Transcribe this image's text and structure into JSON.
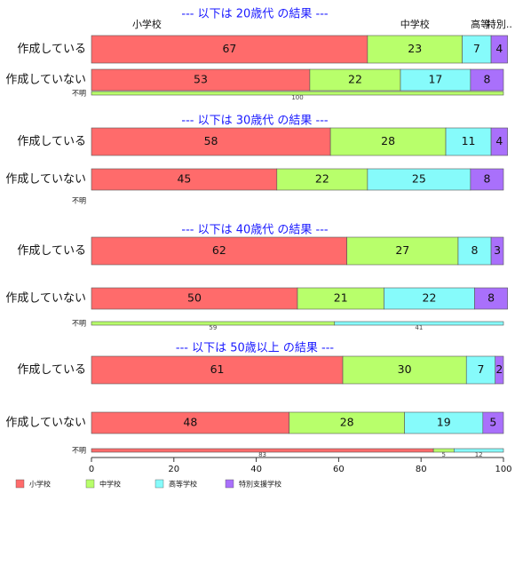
{
  "chart_data": {
    "type": "bar",
    "orientation": "horizontal",
    "stacked": true,
    "categories": [
      "小学校",
      "中学校",
      "高等学校",
      "特別支援学校"
    ],
    "colors": [
      "#ff6b6b",
      "#b8ff6b",
      "#86fbfb",
      "#a970fb"
    ],
    "category_labels_top": [
      "小学校",
      "中学校",
      "高等.",
      "特別.."
    ],
    "xlim": [
      0,
      100
    ],
    "xticks": [
      "0",
      "20",
      "40",
      "60",
      "80",
      "100"
    ],
    "legend_position": "bottom-left",
    "panels": [
      {
        "title": "--- 以下は 20歳代 の結果 ---",
        "show_category_labels": true,
        "rows": [
          {
            "label": "作成している",
            "values": [
              67,
              23,
              7,
              4
            ],
            "height": "big"
          },
          {
            "label": "作成していない",
            "values": [
              53,
              22,
              17,
              8
            ],
            "height": "mid"
          },
          {
            "label": "不明",
            "values": [
              0,
              100,
              0,
              0
            ],
            "height": "small"
          }
        ]
      },
      {
        "title": "--- 以下は 30歳代 の結果 ---",
        "show_category_labels": false,
        "rows": [
          {
            "label": "作成している",
            "values": [
              58,
              28,
              11,
              4
            ],
            "height": "big"
          },
          {
            "label": "作成していない",
            "values": [
              45,
              22,
              25,
              8
            ],
            "height": "mid"
          },
          {
            "label": "不明",
            "values": [
              0,
              0,
              0,
              0
            ],
            "height": "small"
          }
        ]
      },
      {
        "title": "--- 以下は 40歳代 の結果 ---",
        "show_category_labels": false,
        "rows": [
          {
            "label": "作成している",
            "values": [
              62,
              27,
              8,
              3
            ],
            "height": "big"
          },
          {
            "label": "作成していない",
            "values": [
              50,
              21,
              22,
              8
            ],
            "height": "mid"
          },
          {
            "label": "不明",
            "values": [
              0,
              59,
              41,
              0
            ],
            "height": "small"
          }
        ]
      },
      {
        "title": "--- 以下は 50歳以上 の結果 ---",
        "show_category_labels": false,
        "rows": [
          {
            "label": "作成している",
            "values": [
              61,
              30,
              7,
              2
            ],
            "height": "big"
          },
          {
            "label": "作成していない",
            "values": [
              48,
              28,
              19,
              5
            ],
            "height": "mid"
          },
          {
            "label": "不明",
            "values": [
              83,
              5,
              12,
              0
            ],
            "height": "small"
          }
        ]
      }
    ],
    "legend": [
      "小学校",
      "中学校",
      "高等学校",
      "特別支援学校"
    ]
  }
}
